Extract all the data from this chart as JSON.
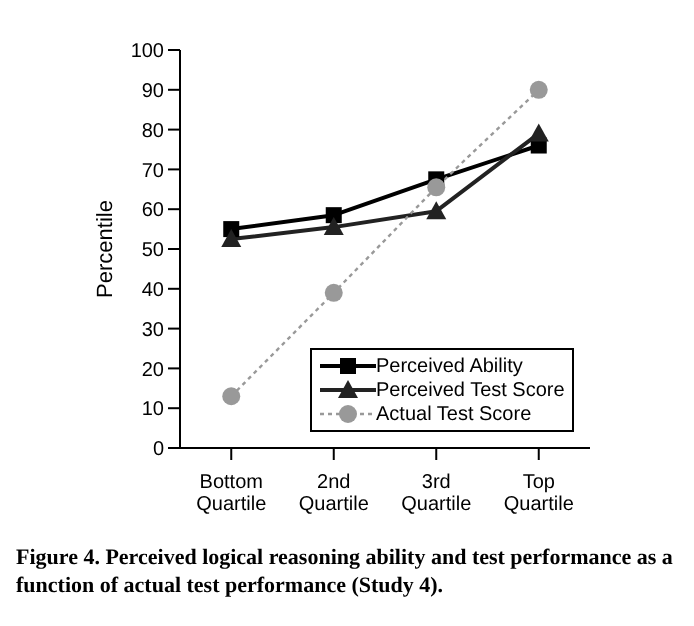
{
  "chart_data": {
    "type": "line",
    "ylabel": "Percentile",
    "categories": [
      "Bottom Quartile",
      "2nd Quartile",
      "3rd Quartile",
      "Top Quartile"
    ],
    "series": [
      {
        "name": "Perceived Ability",
        "color": "#000000",
        "values": [
          55,
          58.5,
          67.5,
          76
        ],
        "marker": "square",
        "line_style": "solid"
      },
      {
        "name": "Perceived Test Score",
        "color": "#222222",
        "values": [
          52.5,
          55.5,
          59.5,
          79
        ],
        "marker": "triangle",
        "line_style": "solid"
      },
      {
        "name": "Actual Test Score",
        "color": "#999999",
        "values": [
          13,
          39,
          65.5,
          90
        ],
        "marker": "circle",
        "line_style": "dotted"
      }
    ],
    "ylim": [
      0,
      100
    ],
    "yticks": [
      0,
      10,
      20,
      30,
      40,
      50,
      60,
      70,
      80,
      90,
      100
    ],
    "grid": false,
    "legend": "bottom right",
    "annotations": [
      "Figure 4. Perceived logical reasoning ability and test performance as a function of actual test performance (Study 4)."
    ]
  }
}
